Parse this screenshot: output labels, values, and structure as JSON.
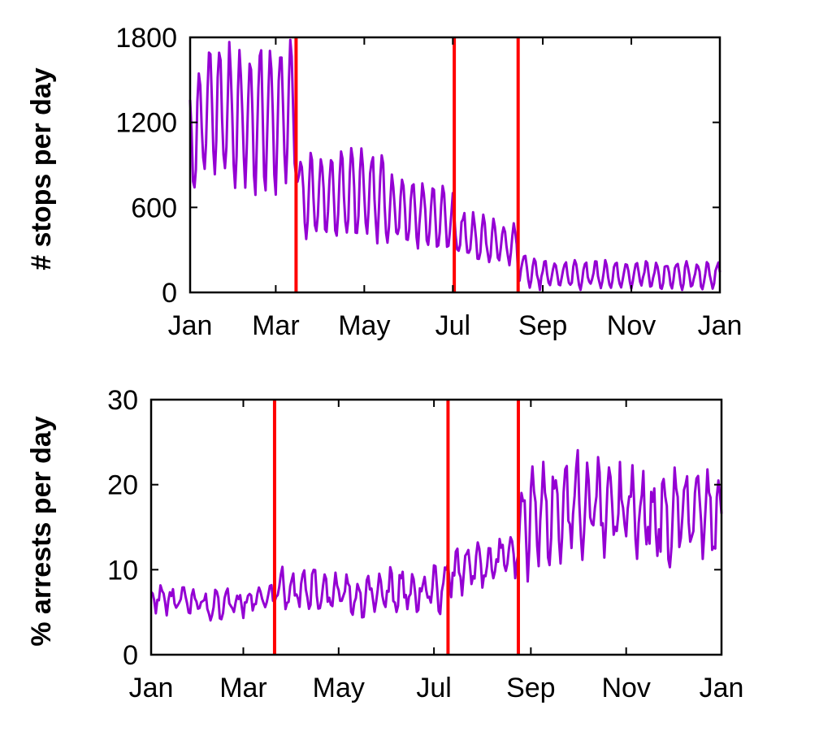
{
  "colors": {
    "series": "#9400d3",
    "events": "#ff0000",
    "axis": "#000000",
    "background": "#ffffff"
  },
  "chart_data": [
    {
      "type": "line",
      "title": "",
      "xlabel": "",
      "ylabel": "# stops per day",
      "xlim": [
        1,
        366
      ],
      "ylim": [
        0,
        1800
      ],
      "grid": false,
      "xticks": [
        {
          "day": 1,
          "label": "Jan"
        },
        {
          "day": 60,
          "label": "Mar"
        },
        {
          "day": 121,
          "label": "May"
        },
        {
          "day": 182,
          "label": "Jul"
        },
        {
          "day": 244,
          "label": "Sep"
        },
        {
          "day": 305,
          "label": "Nov"
        },
        {
          "day": 366,
          "label": "Jan"
        }
      ],
      "yticks": [
        0,
        600,
        1200,
        1800
      ],
      "event_lines": [
        74,
        183,
        227
      ],
      "series": [
        {
          "segments": [
            {
              "start": 1,
              "end": 15,
              "base_start": 1050,
              "base_end": 1300,
              "amp": 420,
              "noise": 60
            },
            {
              "start": 15,
              "end": 45,
              "base_start": 1300,
              "base_end": 1200,
              "amp": 450,
              "noise": 80
            },
            {
              "start": 45,
              "end": 73,
              "base_start": 1220,
              "base_end": 1280,
              "amp": 480,
              "noise": 90
            },
            {
              "start": 73,
              "end": 76,
              "base_start": 1000,
              "base_end": 800,
              "amp": 150,
              "noise": 40
            },
            {
              "start": 76,
              "end": 110,
              "base_start": 680,
              "base_end": 690,
              "amp": 280,
              "noise": 50
            },
            {
              "start": 110,
              "end": 135,
              "base_start": 700,
              "base_end": 660,
              "amp": 300,
              "noise": 50
            },
            {
              "start": 135,
              "end": 183,
              "base_start": 610,
              "base_end": 500,
              "amp": 220,
              "noise": 40
            },
            {
              "start": 183,
              "end": 227,
              "base_start": 420,
              "base_end": 320,
              "amp": 150,
              "noise": 35
            },
            {
              "start": 227,
              "end": 236,
              "base_start": 200,
              "base_end": 140,
              "amp": 90,
              "noise": 25
            },
            {
              "start": 236,
              "end": 366,
              "base_start": 130,
              "base_end": 120,
              "amp": 90,
              "noise": 25
            }
          ]
        }
      ]
    },
    {
      "type": "line",
      "title": "",
      "xlabel": "",
      "ylabel": "% arrests per day",
      "xlim": [
        1,
        366
      ],
      "ylim": [
        0,
        30
      ],
      "grid": false,
      "xticks": [
        {
          "day": 1,
          "label": "Jan"
        },
        {
          "day": 60,
          "label": "Mar"
        },
        {
          "day": 121,
          "label": "May"
        },
        {
          "day": 182,
          "label": "Jul"
        },
        {
          "day": 244,
          "label": "Sep"
        },
        {
          "day": 305,
          "label": "Nov"
        },
        {
          "day": 366,
          "label": "Jan"
        }
      ],
      "yticks": [
        0,
        10,
        20,
        30
      ],
      "event_lines": [
        80,
        191,
        236
      ],
      "series": [
        {
          "segments": [
            {
              "start": 1,
              "end": 40,
              "base_start": 6.8,
              "base_end": 5.8,
              "amp": 1.2,
              "noise": 0.8
            },
            {
              "start": 40,
              "end": 80,
              "base_start": 5.8,
              "base_end": 6.8,
              "amp": 1.2,
              "noise": 0.8
            },
            {
              "start": 80,
              "end": 130,
              "base_start": 8.0,
              "base_end": 7.0,
              "amp": 2.0,
              "noise": 1.2
            },
            {
              "start": 130,
              "end": 191,
              "base_start": 7.0,
              "base_end": 7.8,
              "amp": 2.0,
              "noise": 1.2
            },
            {
              "start": 191,
              "end": 236,
              "base_start": 9.5,
              "base_end": 12.0,
              "amp": 2.2,
              "noise": 1.4
            },
            {
              "start": 236,
              "end": 280,
              "base_start": 15.5,
              "base_end": 18.0,
              "amp": 5.0,
              "noise": 2.5
            },
            {
              "start": 280,
              "end": 366,
              "base_start": 17.0,
              "base_end": 16.0,
              "amp": 4.0,
              "noise": 2.5
            }
          ]
        }
      ]
    }
  ]
}
